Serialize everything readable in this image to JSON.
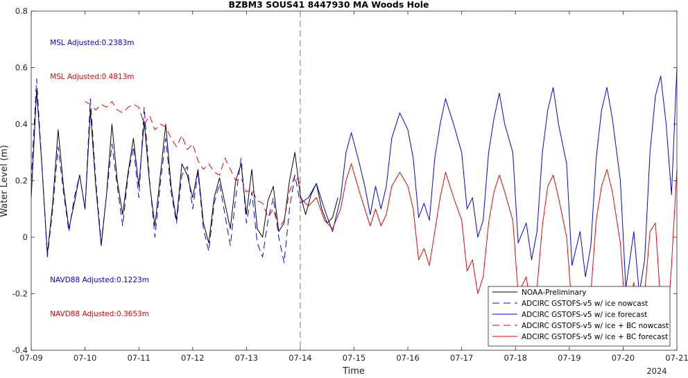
{
  "chart_data": {
    "type": "line",
    "title": "BZBM3 SOUS41 8447930 MA Woods Hole",
    "xlabel": "Time",
    "ylabel": "Water Level (m)",
    "year_label": "2024",
    "xlim": [
      0,
      12
    ],
    "ylim": [
      -0.4,
      0.8
    ],
    "x_ticks": [
      {
        "x": 0,
        "label": "07-09"
      },
      {
        "x": 1,
        "label": "07-10"
      },
      {
        "x": 2,
        "label": "07-11"
      },
      {
        "x": 3,
        "label": "07-12"
      },
      {
        "x": 4,
        "label": "07-13"
      },
      {
        "x": 5,
        "label": "07-14"
      },
      {
        "x": 6,
        "label": "07-15"
      },
      {
        "x": 7,
        "label": "07-16"
      },
      {
        "x": 8,
        "label": "07-17"
      },
      {
        "x": 9,
        "label": "07-18"
      },
      {
        "x": 10,
        "label": "07-19"
      },
      {
        "x": 11,
        "label": "07-20"
      },
      {
        "x": 12,
        "label": "07-21"
      }
    ],
    "y_ticks": [
      -0.4,
      -0.2,
      0,
      0.2,
      0.4,
      0.6,
      0.8
    ],
    "y_tick_labels": [
      "-0.4",
      "-0.2",
      "0",
      "0.2",
      "0.4",
      "0.6",
      "0.8"
    ],
    "nowcast_forecast_divider_x": 5,
    "annotations": [
      {
        "text": "MSL Adjusted:0.2383m",
        "color": "#0000ee",
        "x": 0.35,
        "y": 0.68
      },
      {
        "text": "MSL Adjusted:0.4813m",
        "color": "#ee0000",
        "x": 0.35,
        "y": 0.56
      },
      {
        "text": "NAVD88 Adjusted:0.1223m",
        "color": "#0000ee",
        "x": 0.35,
        "y": -0.16
      },
      {
        "text": "NAVD88 Adjusted:0.3653m",
        "color": "#ee0000",
        "x": 0.35,
        "y": -0.28
      }
    ],
    "legend_position": "bottom-right",
    "series": [
      {
        "name": "NOAA-Preliminary",
        "color": "#000000",
        "dash": "solid",
        "x": [
          0,
          0.1,
          0.2,
          0.3,
          0.4,
          0.5,
          0.6,
          0.7,
          0.8,
          0.9,
          1.0,
          1.1,
          1.2,
          1.3,
          1.4,
          1.5,
          1.6,
          1.7,
          1.8,
          1.9,
          2.0,
          2.1,
          2.2,
          2.3,
          2.4,
          2.5,
          2.6,
          2.7,
          2.8,
          2.9,
          3.0,
          3.1,
          3.2,
          3.3,
          3.4,
          3.5,
          3.6,
          3.7,
          3.8,
          3.9,
          4.0,
          4.1,
          4.2,
          4.3,
          4.4,
          4.5,
          4.6,
          4.7,
          4.8,
          4.9,
          5.0,
          5.1,
          5.2,
          5.3,
          5.4,
          5.5,
          5.6,
          5.7
        ],
        "values": [
          0.14,
          0.52,
          0.25,
          -0.06,
          0.12,
          0.38,
          0.18,
          0.03,
          0.12,
          0.22,
          0.1,
          0.45,
          0.18,
          -0.03,
          0.15,
          0.4,
          0.2,
          0.08,
          0.23,
          0.35,
          0.18,
          0.41,
          0.19,
          0.04,
          0.22,
          0.4,
          0.18,
          0.06,
          0.26,
          0.22,
          0.14,
          0.24,
          0.05,
          -0.02,
          0.14,
          0.21,
          0.12,
          0.03,
          0.2,
          0.26,
          0.08,
          0.24,
          0.03,
          0.0,
          0.13,
          0.18,
          0.02,
          0.05,
          0.2,
          0.3,
          0.15,
          0.08,
          0.15,
          0.19,
          0.1,
          0.05,
          0.07,
          0.14
        ]
      },
      {
        "name": "ADCIRC GSTOFS-v5 w/ ice nowcast",
        "color": "#0000ee",
        "dash": "dashed",
        "x": [
          0,
          0.1,
          0.2,
          0.3,
          0.4,
          0.5,
          0.6,
          0.7,
          0.8,
          0.9,
          1.0,
          1.1,
          1.2,
          1.3,
          1.4,
          1.5,
          1.6,
          1.7,
          1.8,
          1.9,
          2.0,
          2.1,
          2.2,
          2.3,
          2.4,
          2.5,
          2.6,
          2.7,
          2.8,
          2.9,
          3.0,
          3.1,
          3.2,
          3.3,
          3.4,
          3.5,
          3.6,
          3.7,
          3.8,
          3.9,
          4.0,
          4.1,
          4.2,
          4.3,
          4.4,
          4.5,
          4.6,
          4.7,
          4.8,
          4.9,
          5.0
        ],
        "values": [
          0.2,
          0.56,
          0.25,
          -0.07,
          0.1,
          0.32,
          0.16,
          0.02,
          0.14,
          0.22,
          0.1,
          0.49,
          0.2,
          -0.02,
          0.15,
          0.33,
          0.18,
          0.04,
          0.22,
          0.32,
          0.14,
          0.46,
          0.2,
          0.0,
          0.19,
          0.35,
          0.16,
          0.05,
          0.22,
          0.25,
          0.1,
          0.23,
          0.03,
          -0.05,
          0.12,
          0.19,
          0.08,
          -0.03,
          0.14,
          0.28,
          0.05,
          0.16,
          -0.02,
          -0.07,
          0.06,
          0.14,
          0.0,
          -0.09,
          0.1,
          0.22,
          0.12
        ]
      },
      {
        "name": "ADCIRC GSTOFS-v5 w/ ice forecast",
        "color": "#0000ee",
        "dash": "solid",
        "x": [
          5.0,
          5.15,
          5.3,
          5.45,
          5.6,
          5.75,
          5.85,
          5.95,
          6.1,
          6.2,
          6.3,
          6.4,
          6.5,
          6.6,
          6.7,
          6.85,
          7.0,
          7.1,
          7.2,
          7.3,
          7.4,
          7.5,
          7.6,
          7.7,
          7.85,
          8.0,
          8.1,
          8.2,
          8.3,
          8.4,
          8.5,
          8.6,
          8.7,
          8.8,
          8.95,
          9.05,
          9.2,
          9.3,
          9.4,
          9.5,
          9.6,
          9.7,
          9.8,
          9.95,
          10.05,
          10.2,
          10.3,
          10.4,
          10.5,
          10.6,
          10.7,
          10.8,
          10.95,
          11.05,
          11.2,
          11.3,
          11.4,
          11.5,
          11.6,
          11.7,
          11.8,
          11.9,
          12.0
        ],
        "values": [
          0.12,
          0.14,
          0.19,
          0.1,
          0.02,
          0.14,
          0.3,
          0.37,
          0.26,
          0.18,
          0.08,
          0.18,
          0.1,
          0.18,
          0.35,
          0.44,
          0.38,
          0.28,
          0.07,
          0.12,
          0.06,
          0.28,
          0.4,
          0.49,
          0.4,
          0.3,
          0.1,
          0.14,
          0.0,
          0.06,
          0.3,
          0.42,
          0.51,
          0.4,
          0.3,
          -0.02,
          0.05,
          -0.08,
          0.02,
          0.3,
          0.45,
          0.53,
          0.4,
          0.26,
          -0.1,
          0.02,
          -0.14,
          -0.03,
          0.28,
          0.45,
          0.53,
          0.42,
          0.2,
          -0.18,
          0.02,
          -0.2,
          -0.08,
          0.3,
          0.5,
          0.57,
          0.4,
          0.15,
          0.6
        ]
      },
      {
        "name": "ADCIRC GSTOFS-v5 w/ ice + BC nowcast",
        "color": "#ee0000",
        "dash": "dashed",
        "x": [
          1.0,
          1.1,
          1.2,
          1.3,
          1.4,
          1.5,
          1.6,
          1.7,
          1.8,
          1.9,
          2.0,
          2.1,
          2.2,
          2.3,
          2.4,
          2.5,
          2.6,
          2.7,
          2.8,
          2.9,
          3.0,
          3.1,
          3.2,
          3.3,
          3.4,
          3.5,
          3.6,
          3.7,
          3.8,
          3.9,
          4.0,
          4.1,
          4.2,
          4.3,
          4.4,
          4.5,
          4.6,
          4.7,
          4.8,
          4.9,
          5.0
        ],
        "values": [
          0.48,
          0.47,
          0.45,
          0.47,
          0.46,
          0.48,
          0.45,
          0.44,
          0.46,
          0.47,
          0.46,
          0.4,
          0.43,
          0.38,
          0.4,
          0.39,
          0.35,
          0.32,
          0.36,
          0.31,
          0.33,
          0.27,
          0.24,
          0.26,
          0.23,
          0.22,
          0.28,
          0.24,
          0.2,
          0.21,
          0.16,
          0.17,
          0.13,
          0.12,
          0.07,
          0.1,
          0.03,
          0.06,
          0.16,
          0.22,
          0.19
        ]
      },
      {
        "name": "ADCIRC GSTOFS-v5 w/ ice + BC forecast",
        "color": "#ee0000",
        "dash": "solid",
        "x": [
          5.0,
          5.15,
          5.3,
          5.45,
          5.6,
          5.75,
          5.85,
          5.95,
          6.1,
          6.2,
          6.3,
          6.4,
          6.5,
          6.6,
          6.7,
          6.85,
          7.0,
          7.1,
          7.2,
          7.3,
          7.4,
          7.5,
          7.6,
          7.7,
          7.85,
          8.0,
          8.1,
          8.2,
          8.3,
          8.4,
          8.5,
          8.6,
          8.7,
          8.8,
          8.95,
          9.05,
          9.2,
          9.3,
          9.4,
          9.5,
          9.6,
          9.7,
          9.8,
          9.95,
          10.05,
          10.2,
          10.3,
          10.4,
          10.5,
          10.6,
          10.7,
          10.8,
          10.95,
          11.05,
          11.2,
          11.3,
          11.4,
          11.5,
          11.6,
          11.7,
          11.8,
          11.9,
          12.0
        ],
        "values": [
          0.14,
          0.11,
          0.14,
          0.06,
          0.03,
          0.1,
          0.2,
          0.26,
          0.16,
          0.1,
          0.04,
          0.1,
          0.04,
          0.08,
          0.18,
          0.23,
          0.18,
          0.1,
          -0.08,
          -0.04,
          -0.1,
          0.02,
          0.14,
          0.23,
          0.14,
          0.06,
          -0.12,
          -0.08,
          -0.2,
          -0.14,
          0.05,
          0.16,
          0.22,
          0.16,
          0.06,
          -0.2,
          -0.14,
          -0.27,
          -0.18,
          0.04,
          0.18,
          0.22,
          0.14,
          0.0,
          -0.25,
          -0.18,
          -0.3,
          -0.2,
          0.06,
          0.18,
          0.24,
          0.16,
          -0.02,
          -0.3,
          -0.16,
          -0.36,
          -0.2,
          0.02,
          0.05,
          -0.24,
          -0.38,
          -0.1,
          0.24
        ]
      }
    ]
  }
}
